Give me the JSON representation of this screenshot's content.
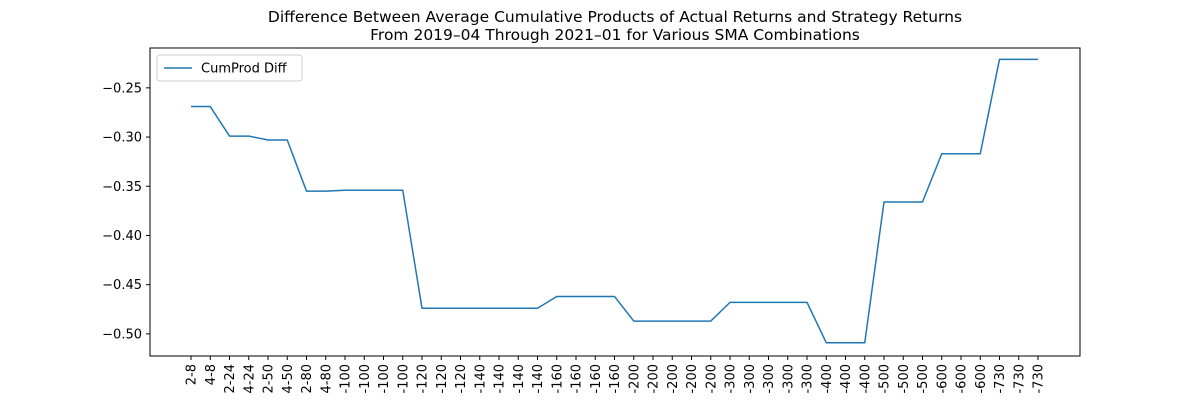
{
  "chart_data": {
    "type": "line",
    "title": "Difference Between Average Cumulative Products of Actual Returns and Strategy Returns",
    "subtitle": "From 2019–04 Through 2021–01 for Various SMA Combinations",
    "xlabel": "",
    "ylabel": "",
    "ylim": [
      -0.5225,
      -0.2095
    ],
    "yticks": [
      -0.25,
      -0.3,
      -0.35,
      -0.4,
      -0.45,
      -0.5
    ],
    "ytick_labels": [
      "−0.25",
      "−0.30",
      "−0.35",
      "−0.40",
      "−0.45",
      "−0.50"
    ],
    "grid": false,
    "legend_position": "upper-left",
    "categories": [
      "2-8",
      "4-8",
      "2-24",
      "4-24",
      "2-50",
      "4-50",
      "2-80",
      "4-80",
      "-100",
      "-100",
      "-100",
      "-100",
      "-120",
      "-120",
      "-120",
      "-140",
      "-140",
      "-140",
      "-140",
      "-160",
      "-160",
      "-160",
      "-160",
      "-200",
      "-200",
      "-200",
      "-200",
      "-200",
      "-300",
      "-300",
      "-300",
      "-300",
      "-300",
      "-400",
      "-400",
      "-400",
      "-500",
      "-500",
      "-500",
      "-600",
      "-600",
      "-600",
      "-730",
      "-730",
      "-730"
    ],
    "series": [
      {
        "name": "CumProd Diff",
        "color": "#1f77b4",
        "values": [
          -0.269,
          -0.269,
          -0.299,
          -0.299,
          -0.303,
          -0.303,
          -0.355,
          -0.355,
          -0.354,
          -0.354,
          -0.354,
          -0.354,
          -0.474,
          -0.474,
          -0.474,
          -0.474,
          -0.474,
          -0.474,
          -0.474,
          -0.462,
          -0.462,
          -0.462,
          -0.462,
          -0.487,
          -0.487,
          -0.487,
          -0.487,
          -0.487,
          -0.468,
          -0.468,
          -0.468,
          -0.468,
          -0.468,
          -0.509,
          -0.509,
          -0.509,
          -0.366,
          -0.366,
          -0.366,
          -0.317,
          -0.317,
          -0.317,
          -0.221,
          -0.221,
          -0.221
        ]
      }
    ]
  }
}
